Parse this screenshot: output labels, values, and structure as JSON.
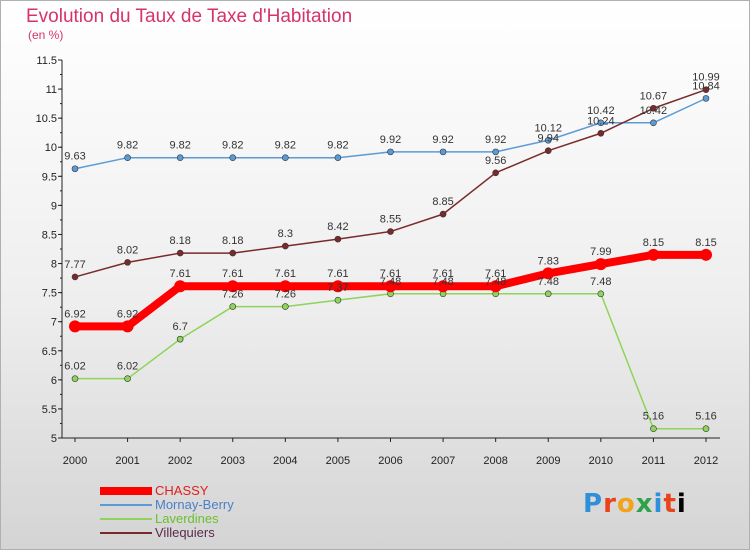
{
  "header": {
    "title": "Evolution du Taux de Taxe d'Habitation",
    "subtitle": "(en %)"
  },
  "logo": {
    "text": "Proxiti"
  },
  "chart_data": {
    "type": "line",
    "title": "Evolution du Taux de Taxe d'Habitation",
    "subtitle": "(en %)",
    "xlabel": "",
    "ylabel": "",
    "x": [
      "2000",
      "2001",
      "2002",
      "2003",
      "2004",
      "2005",
      "2006",
      "2007",
      "2008",
      "2009",
      "2010",
      "2011",
      "2012"
    ],
    "ylim": [
      5,
      11.5
    ],
    "yticks": [
      "5",
      "5.5",
      "6",
      "6.5",
      "7",
      "7.5",
      "8",
      "8.5",
      "9",
      "9.5",
      "10",
      "10.5",
      "11",
      "11.5"
    ],
    "grid": false,
    "legend_position": "bottom-left",
    "series": [
      {
        "name": "CHASSY",
        "color": "#ff0000",
        "thick": true,
        "values": [
          6.92,
          6.92,
          7.61,
          7.61,
          7.61,
          7.61,
          7.61,
          7.61,
          7.61,
          7.83,
          7.99,
          8.15,
          8.15
        ]
      },
      {
        "name": "Mornay-Berry",
        "color": "#5b9bd5",
        "thick": false,
        "values": [
          9.63,
          9.82,
          9.82,
          9.82,
          9.82,
          9.82,
          9.92,
          9.92,
          9.92,
          10.12,
          10.42,
          10.42,
          10.84
        ]
      },
      {
        "name": "Laverdines",
        "color": "#8ed45a",
        "thick": false,
        "values": [
          6.02,
          6.02,
          6.7,
          7.26,
          7.26,
          7.37,
          7.48,
          7.48,
          7.48,
          7.48,
          7.48,
          5.16,
          5.16
        ]
      },
      {
        "name": "Villequiers",
        "color": "#7a2a2a",
        "thick": false,
        "values": [
          7.77,
          8.02,
          8.18,
          8.18,
          8.3,
          8.42,
          8.55,
          8.85,
          9.56,
          9.94,
          10.24,
          10.67,
          10.99
        ]
      }
    ],
    "data_labels": {
      "CHASSY": [
        "6.92",
        "6.92",
        "7.61",
        "7.61",
        "7.61",
        "7.61",
        "7.61",
        "7.61",
        "7.61",
        "7.83",
        "7.99",
        "8.15",
        "8.15"
      ],
      "Mornay-Berry": [
        "9.63",
        "9.82",
        "9.82",
        "9.82",
        "9.82",
        "9.82",
        "9.92",
        "9.92",
        "9.92",
        "10.12",
        "10.42",
        "10.42",
        "10.84"
      ],
      "Laverdines": [
        "6.02",
        "6.02",
        "6.7",
        "7.26",
        "7.26",
        "7.37",
        "7.48",
        "7.48",
        "7.48",
        "7.48",
        "7.48",
        "5.16",
        "5.16"
      ],
      "Villequiers": [
        "7.77",
        "8.02",
        "8.18",
        "8.18",
        "8.3",
        "8.42",
        "8.55",
        "8.85",
        "9.56",
        "9.94",
        "10.24",
        "10.67",
        "10.99"
      ]
    }
  }
}
